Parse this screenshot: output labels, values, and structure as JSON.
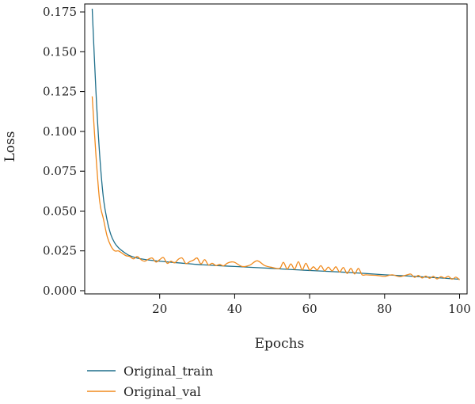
{
  "chart_data": {
    "type": "line",
    "title": "",
    "xlabel": "Epochs",
    "ylabel": "Loss",
    "xlim": [
      0,
      102
    ],
    "ylim": [
      -0.002,
      0.18
    ],
    "xticks": [
      20,
      40,
      60,
      80,
      100
    ],
    "xtick_labels": [
      "20",
      "40",
      "60",
      "80",
      "100"
    ],
    "yticks": [
      0.0,
      0.025,
      0.05,
      0.075,
      0.1,
      0.125,
      0.15,
      0.175
    ],
    "ytick_labels": [
      "0.000",
      "0.025",
      "0.050",
      "0.075",
      "0.100",
      "0.125",
      "0.150",
      "0.175"
    ],
    "grid": false,
    "legend_position": "below-left",
    "series": [
      {
        "name": "Original_train",
        "color": "#1f6f8b",
        "x": [
          2,
          3,
          4,
          5,
          6,
          7,
          8,
          9,
          10,
          12,
          15,
          20,
          25,
          30,
          35,
          40,
          45,
          50,
          55,
          60,
          65,
          70,
          75,
          80,
          85,
          90,
          95,
          100
        ],
        "y": [
          0.177,
          0.125,
          0.085,
          0.058,
          0.044,
          0.035,
          0.03,
          0.027,
          0.025,
          0.022,
          0.02,
          0.0185,
          0.0175,
          0.0165,
          0.0158,
          0.0152,
          0.0146,
          0.014,
          0.0133,
          0.0127,
          0.0121,
          0.0115,
          0.0108,
          0.01,
          0.0094,
          0.0087,
          0.008,
          0.0072
        ]
      },
      {
        "name": "Original_val",
        "color": "#f08a1d",
        "x": [
          2,
          3,
          4,
          5,
          6,
          7,
          8,
          9,
          10,
          11,
          12,
          13,
          14,
          15,
          16,
          17,
          18,
          19,
          20,
          21,
          22,
          23,
          24,
          25,
          26,
          27,
          28,
          29,
          30,
          31,
          32,
          33,
          34,
          35,
          36,
          37,
          38,
          39,
          40,
          42,
          44,
          46,
          48,
          50,
          52,
          53,
          54,
          55,
          56,
          57,
          58,
          59,
          60,
          61,
          62,
          63,
          64,
          65,
          66,
          67,
          68,
          69,
          70,
          71,
          72,
          73,
          74,
          75,
          76,
          78,
          80,
          82,
          84,
          86,
          87,
          88,
          89,
          90,
          91,
          92,
          93,
          94,
          95,
          96,
          97,
          98,
          99,
          100
        ],
        "y": [
          0.122,
          0.085,
          0.056,
          0.045,
          0.034,
          0.028,
          0.025,
          0.025,
          0.0235,
          0.022,
          0.0215,
          0.02,
          0.0215,
          0.0195,
          0.0185,
          0.0198,
          0.0205,
          0.018,
          0.0195,
          0.0208,
          0.0172,
          0.0185,
          0.0175,
          0.0198,
          0.0205,
          0.017,
          0.0182,
          0.0192,
          0.0205,
          0.0168,
          0.0195,
          0.0162,
          0.0172,
          0.0158,
          0.0165,
          0.0156,
          0.0172,
          0.018,
          0.0178,
          0.0152,
          0.016,
          0.0188,
          0.0158,
          0.0146,
          0.014,
          0.0178,
          0.0136,
          0.0168,
          0.0135,
          0.0182,
          0.0131,
          0.0172,
          0.013,
          0.015,
          0.013,
          0.0157,
          0.0125,
          0.0148,
          0.0124,
          0.015,
          0.0117,
          0.0146,
          0.0108,
          0.014,
          0.0105,
          0.014,
          0.01,
          0.01,
          0.0098,
          0.0096,
          0.009,
          0.01,
          0.0088,
          0.01,
          0.0104,
          0.0084,
          0.0096,
          0.008,
          0.0092,
          0.0078,
          0.009,
          0.0074,
          0.0088,
          0.008,
          0.009,
          0.0072,
          0.0085,
          0.0068
        ]
      }
    ]
  }
}
